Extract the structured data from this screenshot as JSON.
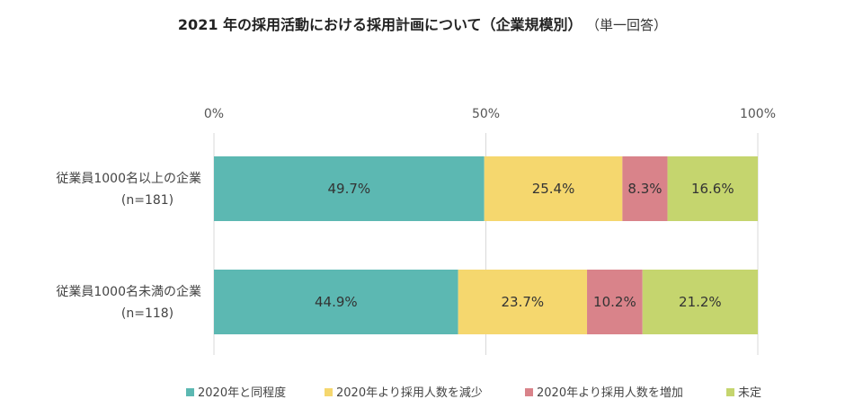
{
  "chart_data": {
    "type": "bar",
    "orientation": "horizontal",
    "stacked": true,
    "percent": true,
    "title": "2021 年の採用活動における採用計画について（企業規模別）",
    "subtitle": "（単一回答）",
    "xlim": [
      0,
      100
    ],
    "x_ticks": [
      "0%",
      "50%",
      "100%"
    ],
    "grid": true,
    "legend_position": "bottom",
    "categories": [
      {
        "name": "従業員1000名以上の企業",
        "n": "(n=181)"
      },
      {
        "name": "従業員1000名未満の企業",
        "n": "(n=118)"
      }
    ],
    "series": [
      {
        "name": "2020年と同程度",
        "color": "#5cb8b2",
        "values": [
          49.7,
          44.9
        ],
        "labels": [
          "49.7%",
          "44.9%"
        ]
      },
      {
        "name": "2020年より採用人数を減少",
        "color": "#f5d76e",
        "values": [
          25.4,
          23.7
        ],
        "labels": [
          "25.4%",
          "23.7%"
        ]
      },
      {
        "name": "2020年より採用人数を増加",
        "color": "#d9838a",
        "values": [
          8.3,
          10.2
        ],
        "labels": [
          "8.3%",
          "10.2%"
        ]
      },
      {
        "name": "未定",
        "color": "#c5d56e",
        "values": [
          16.6,
          21.2
        ],
        "labels": [
          "16.6%",
          "21.2%"
        ]
      }
    ]
  }
}
